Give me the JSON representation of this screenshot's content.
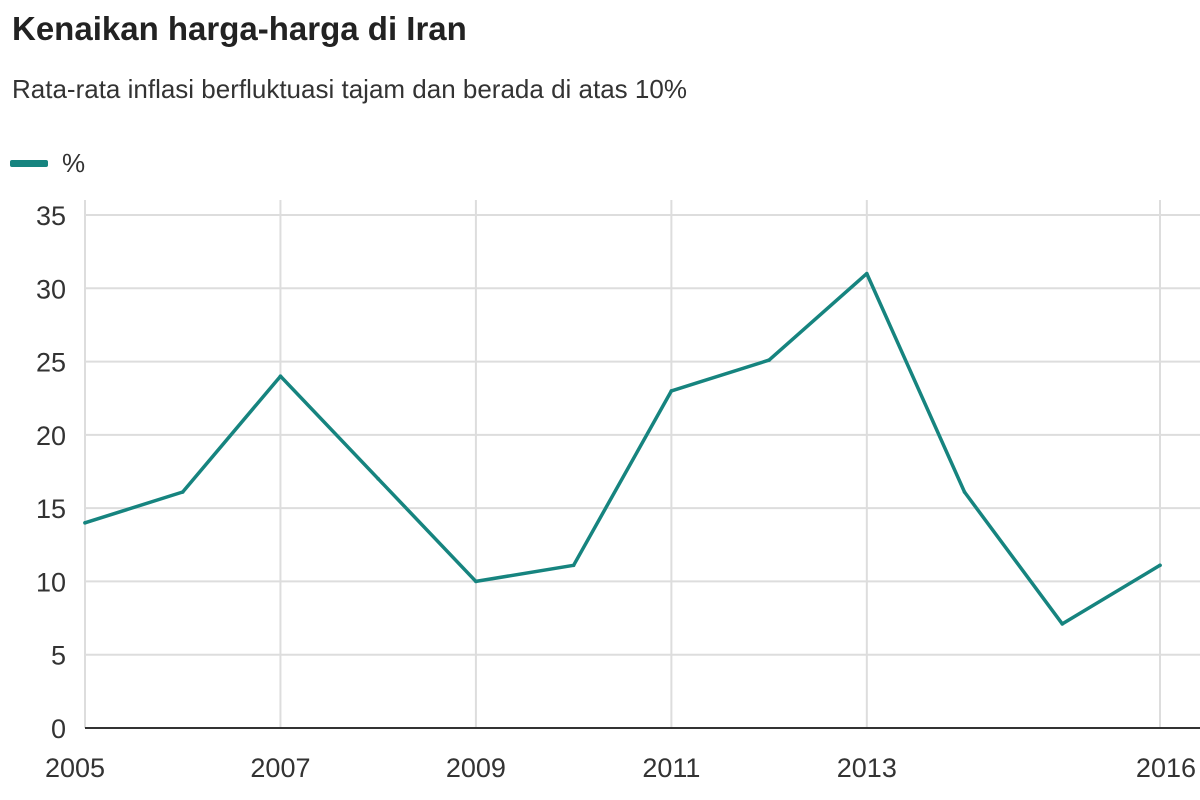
{
  "chart_data": {
    "type": "line",
    "title": "Kenaikan harga-harga di Iran",
    "subtitle": "Rata-rata inflasi berfluktuasi tajam dan berada di atas 10%",
    "xlabel": "",
    "ylabel": "",
    "x": [
      2005,
      2006,
      2007,
      2008,
      2009,
      2010,
      2011,
      2012,
      2013,
      2014,
      2015,
      2016
    ],
    "series": [
      {
        "name": "%",
        "color": "#16847f",
        "values": [
          14,
          16.1,
          24,
          17,
          10,
          11.1,
          23,
          25.1,
          31,
          16.1,
          7.1,
          11.1
        ]
      }
    ],
    "xlim": [
      2005,
      2016
    ],
    "ylim": [
      0,
      35
    ],
    "yticks": [
      0,
      5,
      10,
      15,
      20,
      25,
      30,
      35
    ],
    "xticks": [
      2005,
      2007,
      2009,
      2011,
      2013,
      2016
    ],
    "grid": true,
    "legend_position": "top-left"
  },
  "colors": {
    "line": "#16847f",
    "grid": "#dddddd",
    "axis": "#333333"
  }
}
